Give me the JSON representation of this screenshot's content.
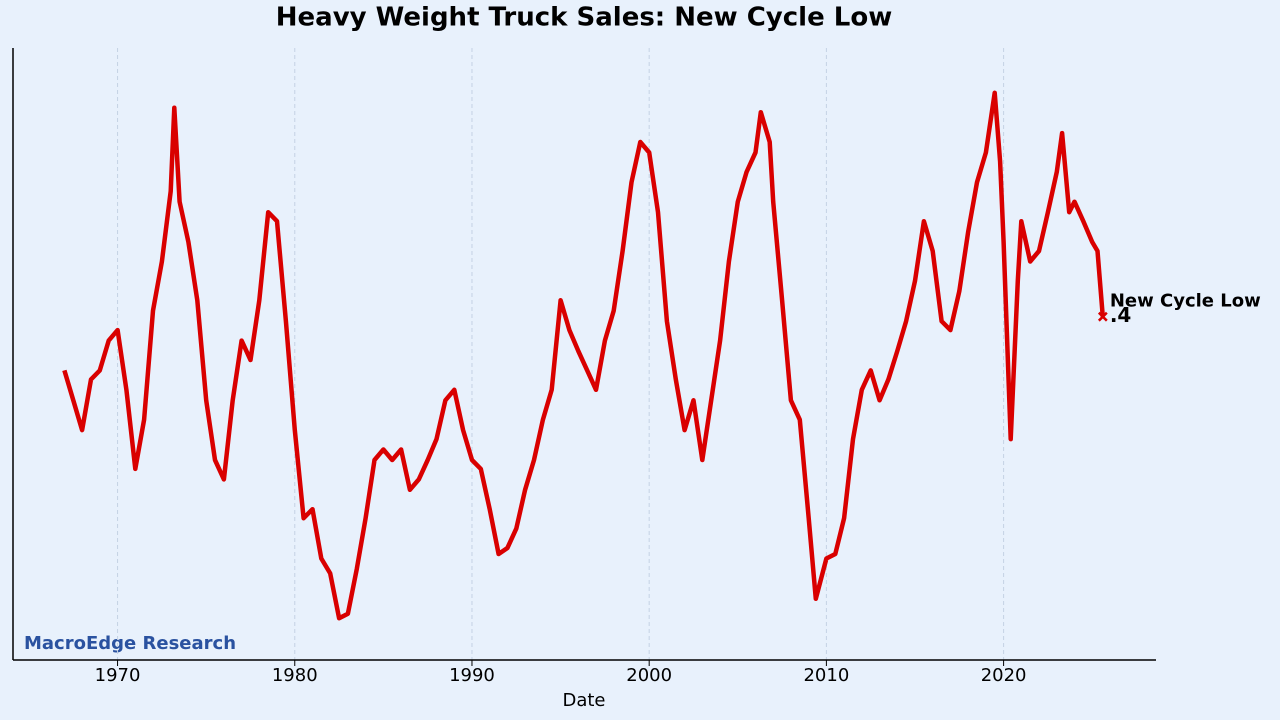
{
  "chart_data": {
    "type": "line",
    "title": "Heavy Weight Truck Sales: New Cycle Low",
    "x_label": "Date",
    "watermark": "MacroEdge Research",
    "annotation": {
      "text": "New Cycle Low",
      "label": ".4"
    },
    "xlim": [
      1964.1,
      2028.6
    ],
    "xticks": [
      1970,
      1980,
      1990,
      2000,
      2010,
      2020
    ],
    "ylim": [
      0.17,
      0.58
    ],
    "grid": true,
    "series": [
      {
        "name": "Heavy Weight Truck Sales",
        "color": "#d90000",
        "x": [
          1967.0,
          1967.5,
          1968.0,
          1968.5,
          1969.0,
          1969.5,
          1970.0,
          1970.5,
          1971.0,
          1971.5,
          1972.0,
          1972.5,
          1973.0,
          1973.2,
          1973.5,
          1974.0,
          1974.5,
          1975.0,
          1975.5,
          1976.0,
          1976.5,
          1977.0,
          1977.5,
          1978.0,
          1978.5,
          1979.0,
          1979.5,
          1980.0,
          1980.5,
          1981.0,
          1981.5,
          1982.0,
          1982.5,
          1983.0,
          1983.5,
          1984.0,
          1984.5,
          1985.0,
          1985.5,
          1986.0,
          1986.5,
          1987.0,
          1987.5,
          1988.0,
          1988.5,
          1989.0,
          1989.5,
          1990.0,
          1990.5,
          1991.0,
          1991.5,
          1992.0,
          1992.5,
          1993.0,
          1993.5,
          1994.0,
          1994.5,
          1995.0,
          1995.5,
          1996.0,
          1996.5,
          1997.0,
          1997.5,
          1998.0,
          1998.5,
          1999.0,
          1999.5,
          2000.0,
          2000.5,
          2001.0,
          2001.5,
          2002.0,
          2002.5,
          2003.0,
          2003.5,
          2004.0,
          2004.5,
          2005.0,
          2005.5,
          2006.0,
          2006.3,
          2006.8,
          2007.0,
          2007.5,
          2008.0,
          2008.5,
          2009.0,
          2009.4,
          2010.0,
          2010.5,
          2011.0,
          2011.5,
          2012.0,
          2012.5,
          2013.0,
          2013.5,
          2014.0,
          2014.5,
          2015.0,
          2015.5,
          2016.0,
          2016.5,
          2017.0,
          2017.5,
          2018.0,
          2018.5,
          2019.0,
          2019.5,
          2019.8,
          2020.0,
          2020.4,
          2020.8,
          2021.0,
          2021.5,
          2022.0,
          2022.5,
          2023.0,
          2023.3,
          2023.7,
          2024.0,
          2024.5,
          2025.0,
          2025.3,
          2025.6
        ],
        "values": [
          0.364,
          0.344,
          0.324,
          0.358,
          0.364,
          0.384,
          0.391,
          0.351,
          0.298,
          0.331,
          0.404,
          0.437,
          0.484,
          0.54,
          0.477,
          0.45,
          0.411,
          0.344,
          0.304,
          0.291,
          0.344,
          0.384,
          0.371,
          0.411,
          0.47,
          0.464,
          0.397,
          0.324,
          0.265,
          0.271,
          0.238,
          0.228,
          0.198,
          0.201,
          0.231,
          0.265,
          0.304,
          0.311,
          0.304,
          0.311,
          0.284,
          0.291,
          0.304,
          0.318,
          0.344,
          0.351,
          0.324,
          0.304,
          0.298,
          0.271,
          0.241,
          0.245,
          0.258,
          0.284,
          0.304,
          0.331,
          0.351,
          0.411,
          0.391,
          0.377,
          0.364,
          0.351,
          0.384,
          0.404,
          0.444,
          0.49,
          0.517,
          0.51,
          0.47,
          0.397,
          0.358,
          0.324,
          0.344,
          0.304,
          0.344,
          0.384,
          0.437,
          0.477,
          0.497,
          0.51,
          0.537,
          0.517,
          0.477,
          0.411,
          0.344,
          0.331,
          0.265,
          0.211,
          0.238,
          0.241,
          0.265,
          0.318,
          0.351,
          0.364,
          0.344,
          0.358,
          0.377,
          0.397,
          0.424,
          0.464,
          0.444,
          0.397,
          0.391,
          0.417,
          0.457,
          0.49,
          0.51,
          0.55,
          0.504,
          0.45,
          0.318,
          0.424,
          0.464,
          0.437,
          0.444,
          0.47,
          0.497,
          0.523,
          0.47,
          0.477,
          0.464,
          0.45,
          0.444,
          0.4
        ]
      }
    ]
  }
}
